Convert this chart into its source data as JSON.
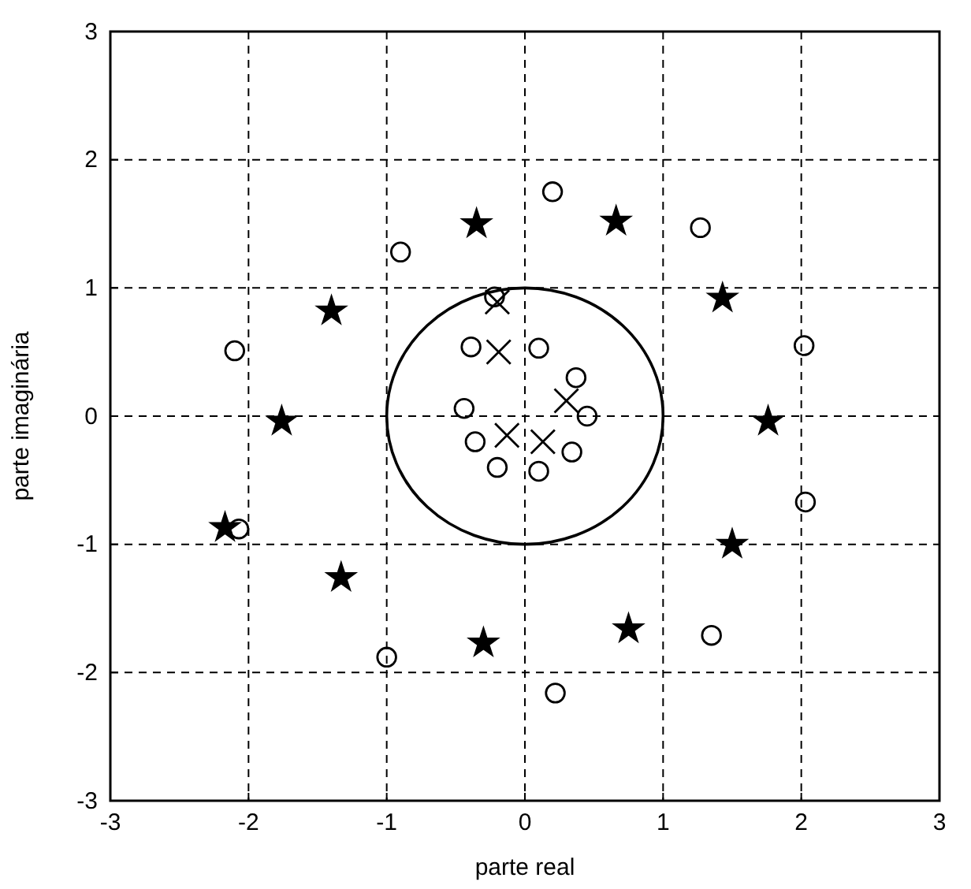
{
  "chart_data": {
    "type": "scatter",
    "xlabel": "parte real",
    "ylabel": "parte imaginária",
    "xlim": [
      -3,
      3
    ],
    "ylim": [
      -3,
      3
    ],
    "xticks": [
      -3,
      -2,
      -1,
      0,
      1,
      2,
      3
    ],
    "yticks": [
      -3,
      -2,
      -1,
      0,
      1,
      2,
      3
    ],
    "grid": true,
    "series": [
      {
        "marker": "circle",
        "color": "#000000",
        "x": [
          0.2,
          -0.9,
          1.27,
          -2.1,
          2.02,
          -0.39,
          0.1,
          0.37,
          0.45,
          -0.44,
          -0.36,
          -0.2,
          0.1,
          0.34,
          -2.07,
          2.03,
          -1.0,
          1.35,
          0.22,
          -0.22
        ],
        "values": [
          1.75,
          1.28,
          1.47,
          0.51,
          0.55,
          0.54,
          0.53,
          0.3,
          0.0,
          0.06,
          -0.2,
          -0.4,
          -0.43,
          -0.28,
          -0.88,
          -0.67,
          -1.88,
          -1.71,
          -2.16,
          0.93
        ]
      },
      {
        "marker": "cross",
        "color": "#000000",
        "x": [
          -0.2,
          -0.19,
          0.3,
          -0.13,
          0.13
        ],
        "values": [
          0.89,
          0.5,
          0.12,
          -0.15,
          -0.2
        ]
      },
      {
        "marker": "star",
        "color": "#000000",
        "x": [
          -0.35,
          0.66,
          -1.4,
          1.43,
          -1.76,
          1.76,
          -2.17,
          1.5,
          -1.33,
          -0.3,
          0.75
        ],
        "values": [
          1.5,
          1.52,
          0.82,
          0.92,
          -0.04,
          -0.04,
          -0.87,
          -1.0,
          -1.26,
          -1.77,
          -1.66
        ]
      }
    ]
  }
}
